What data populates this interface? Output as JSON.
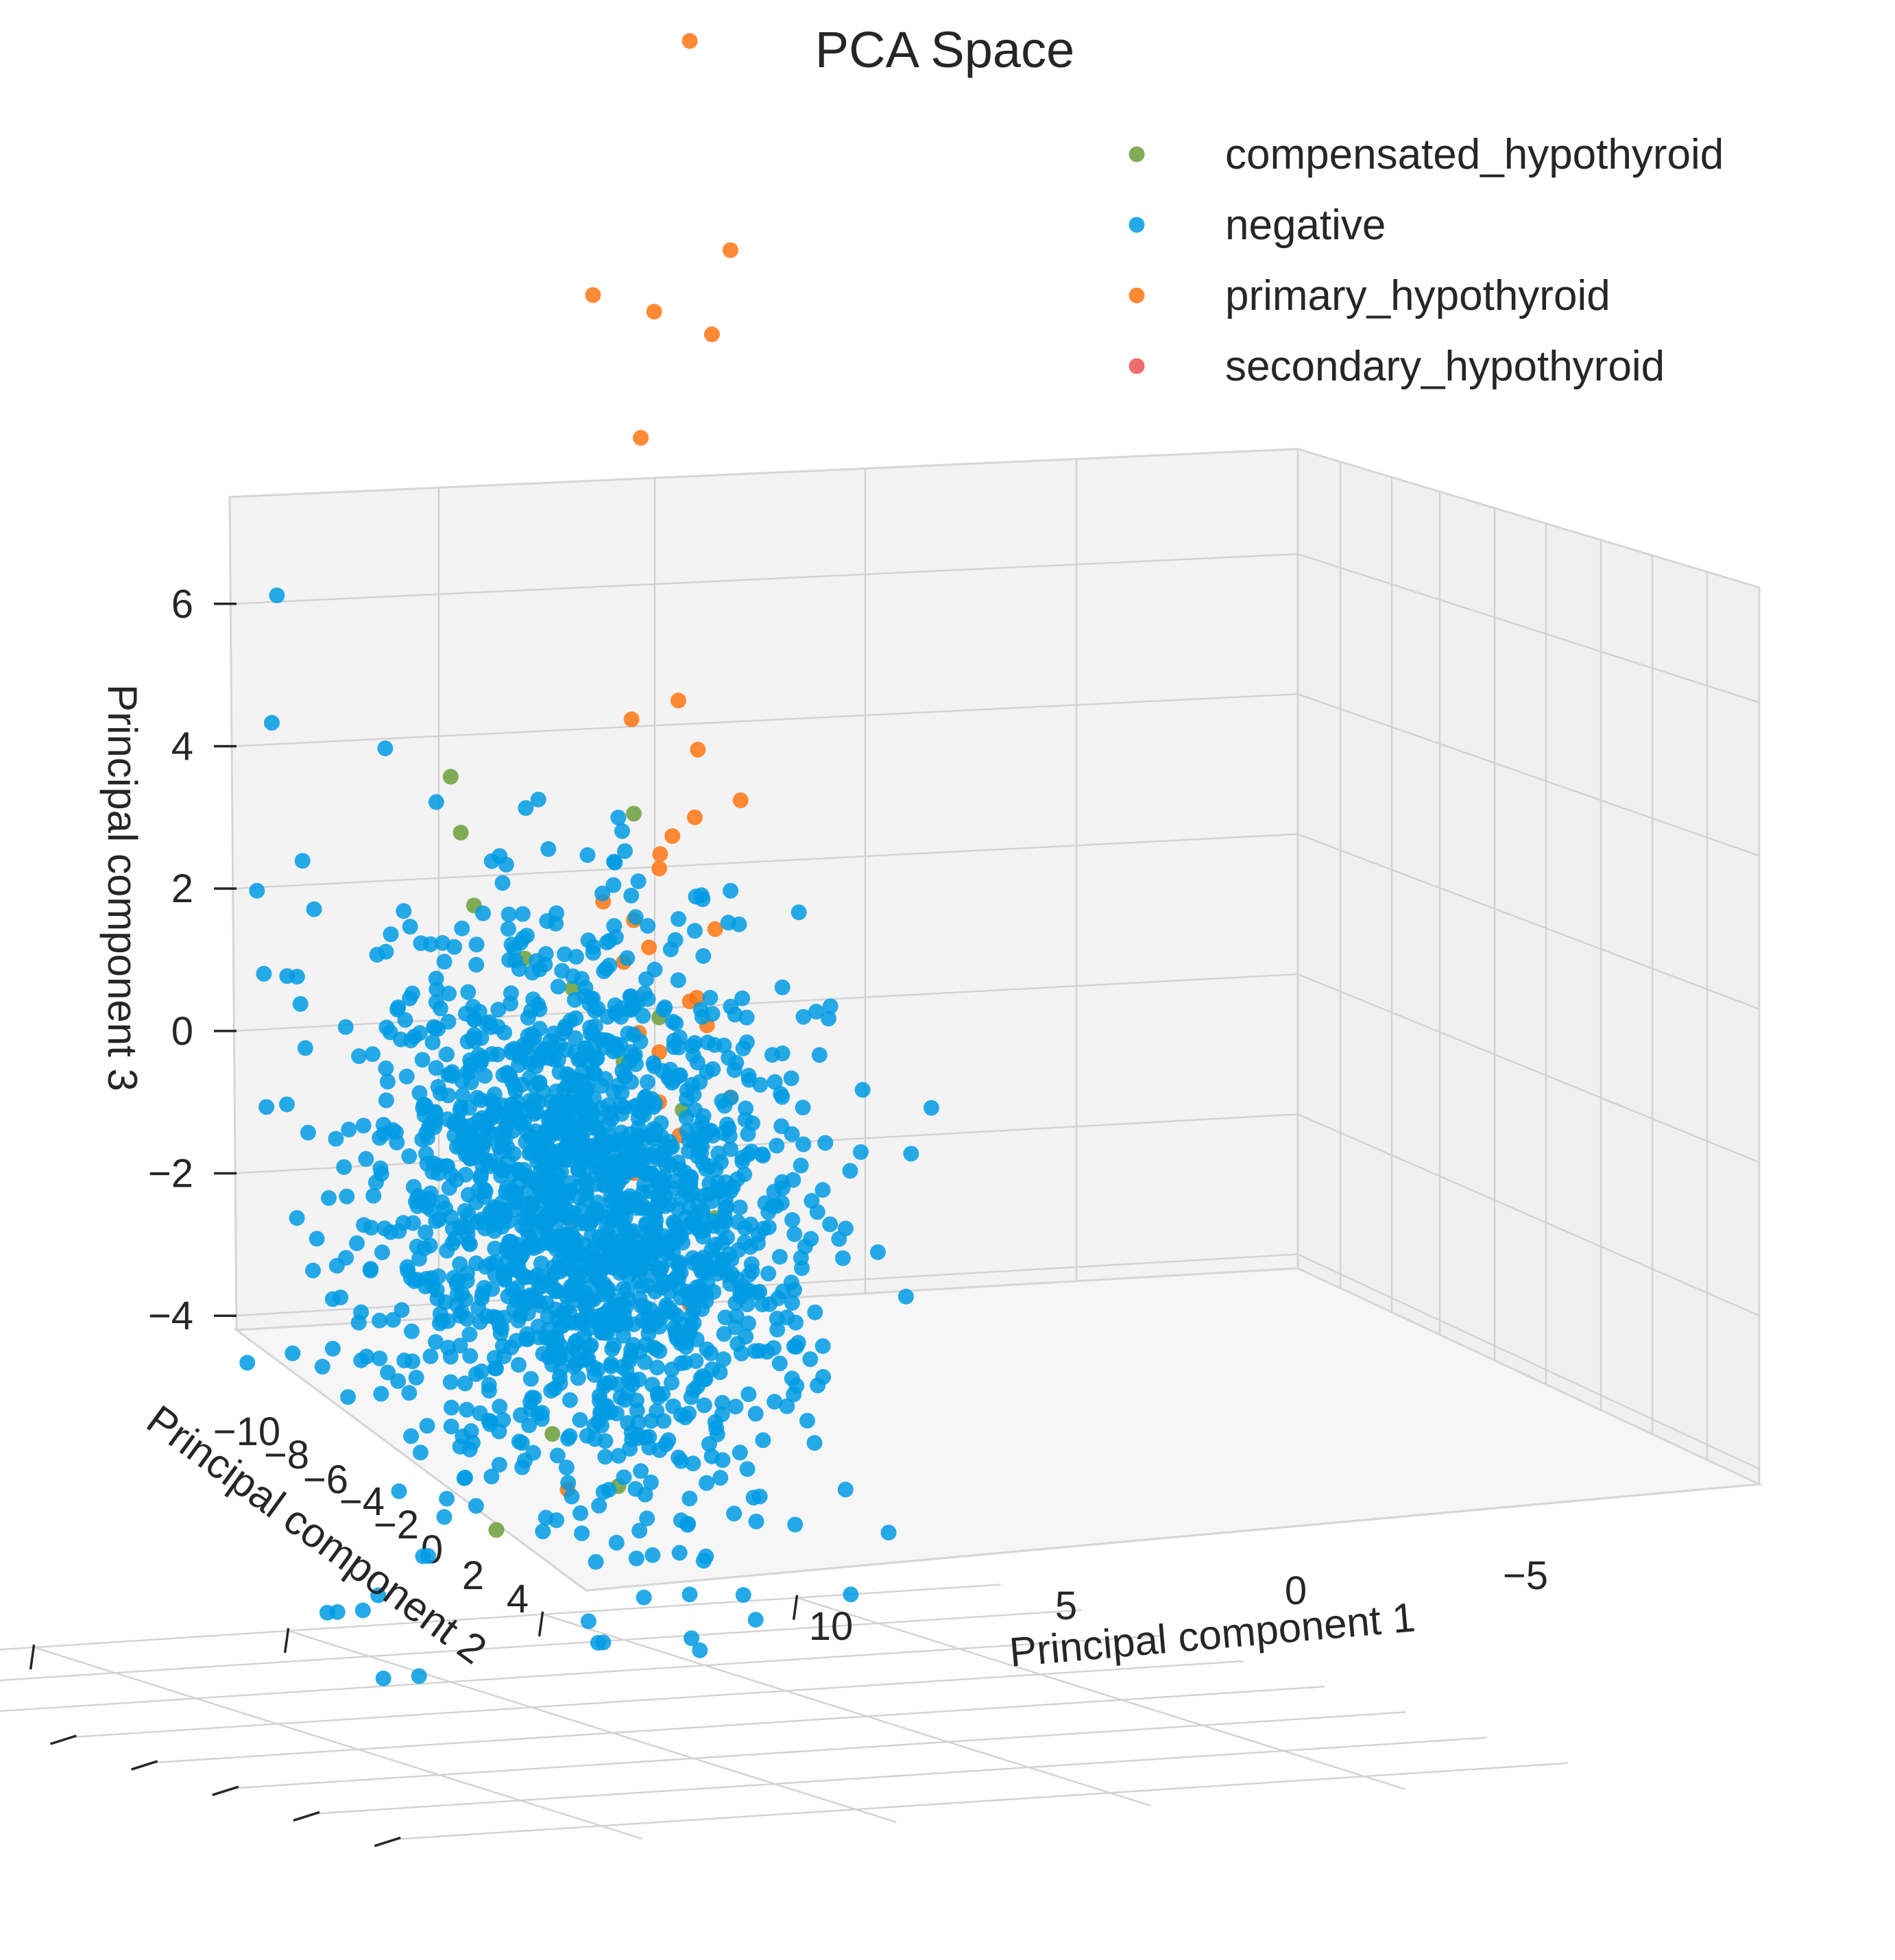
{
  "chart_data": {
    "type": "scatter",
    "projection": "3d",
    "title": "PCA Space",
    "xlabel": "Principal component 1",
    "ylabel": "Principal component 2",
    "zlabel": "Principal component 3",
    "x_ticks": [
      "10",
      "5",
      "0",
      "−5"
    ],
    "y_ticks": [
      "−10",
      "−8",
      "−6",
      "−4",
      "−2",
      "0",
      "2",
      "4"
    ],
    "z_ticks": [
      "6",
      "4",
      "2",
      "0",
      "−2",
      "−4"
    ],
    "xlim": [
      -9,
      14
    ],
    "ylim": [
      -11,
      4
    ],
    "zlim": [
      -4.2,
      7.5
    ],
    "grid": true,
    "legend_position": "top-right",
    "series": [
      {
        "name": "compensated_hypothyroid",
        "color": "#6a9e3a"
      },
      {
        "name": "negative",
        "color": "#009be3"
      },
      {
        "name": "primary_hypothyroid",
        "color": "#ff7410"
      },
      {
        "name": "secondary_hypothyroid",
        "color": "#ec5353"
      }
    ],
    "points": {
      "primary_hypothyroid": [
        [
          -0.5,
          1.0,
          7.2
        ],
        [
          -1.3,
          1.0,
          5.7
        ],
        [
          1.8,
          0.5,
          5.5
        ],
        [
          -0.3,
          0.2,
          5.2
        ],
        [
          0.2,
          1.0,
          5.3
        ],
        [
          1.1,
          0.2,
          4.5
        ],
        [
          1.2,
          0.3,
          2.5
        ],
        [
          0.2,
          0.4,
          2.6
        ],
        [
          -0.5,
          0.8,
          2.2
        ],
        [
          -0.6,
          1.0,
          1.7
        ],
        [
          -1.5,
          1.0,
          1.8
        ],
        [
          0.0,
          0.8,
          1.6
        ],
        [
          0.4,
          0.6,
          1.5
        ],
        [
          -0.3,
          1.5,
          1.3
        ],
        [
          0.6,
          1.0,
          1.0
        ],
        [
          0.0,
          2.0,
          0.6
        ],
        [
          -0.5,
          1.0,
          0.4
        ],
        [
          1.6,
          0.5,
          1.2
        ],
        [
          0.3,
          1.0,
          0.8
        ],
        [
          -1.0,
          1.2,
          0.2
        ],
        [
          -1.3,
          1.0,
          -0.3
        ],
        [
          -0.7,
          1.5,
          -0.6
        ],
        [
          -0.2,
          2.0,
          -0.9
        ],
        [
          0.4,
          1.2,
          -1.0
        ],
        [
          1.0,
          2.0,
          -1.2
        ],
        [
          0.8,
          1.5,
          -1.5
        ],
        [
          -0.9,
          1.5,
          -1.8
        ],
        [
          1.9,
          1.0,
          -3.0
        ],
        [
          -1.0,
          2.0,
          -1.4
        ],
        [
          -0.3,
          1.5,
          0.0
        ],
        [
          0.1,
          1.0,
          -0.3
        ],
        [
          0.5,
          1.0,
          0.2
        ],
        [
          -1.0,
          1.0,
          0.9
        ],
        [
          0.9,
          0.5,
          0.5
        ],
        [
          -0.8,
          1.2,
          0.4
        ]
      ],
      "compensated_hypothyroid": [
        [
          4.2,
          1.0,
          2.1
        ],
        [
          4.0,
          1.0,
          1.7
        ],
        [
          3.9,
          0.8,
          1.2
        ],
        [
          2.9,
          0.8,
          0.8
        ],
        [
          2.2,
          0.5,
          0.6
        ],
        [
          0.2,
          1.5,
          1.7
        ],
        [
          0.1,
          1.0,
          0.3
        ],
        [
          0.8,
          1.0,
          0.0
        ],
        [
          -0.6,
          1.3,
          -0.4
        ],
        [
          -1.4,
          1.5,
          -1.2
        ],
        [
          0.3,
          1.2,
          -1.5
        ],
        [
          -0.5,
          1.2,
          -2.0
        ],
        [
          2.2,
          1.0,
          -2.6
        ],
        [
          3.7,
          0.5,
          -3.2
        ],
        [
          0.9,
          1.0,
          -3.0
        ]
      ],
      "negative": [
        [
          10.8,
          -3.0,
          3.9
        ],
        [
          10.9,
          -3.0,
          3.0
        ],
        [
          9.5,
          -2.0,
          1.9
        ],
        [
          9.6,
          -1.0,
          1.6
        ],
        [
          11.2,
          -4.0,
          1.3
        ],
        [
          10.6,
          -3.0,
          1.2
        ],
        [
          12.6,
          -5.0,
          0.5
        ],
        [
          12.0,
          -5.0,
          -0.3
        ],
        [
          11.4,
          -4.0,
          0.4
        ],
        [
          13.4,
          -9.0,
          -1.0
        ],
        [
          14.3,
          -11.0,
          -2.1
        ],
        [
          14.2,
          -11.0,
          -2.1
        ],
        [
          10.5,
          -4.0,
          -1.0
        ],
        [
          10.2,
          -4.0,
          -1.7
        ],
        [
          8.4,
          -3.0,
          -2.5
        ],
        [
          12.2,
          -6.0,
          -3.0
        ],
        [
          12.0,
          -6.0,
          -3.0
        ],
        [
          11.5,
          -6.0,
          -3.0
        ],
        [
          11.2,
          -6.0,
          -2.9
        ],
        [
          10.3,
          -5.0,
          -3.6
        ],
        [
          9.6,
          -5.0,
          -3.6
        ],
        [
          -0.3,
          1.0,
          -3.5
        ],
        [
          -0.5,
          1.0,
          -3.8
        ],
        [
          -1.0,
          0.0,
          -3.9
        ],
        [
          0.4,
          1.0,
          -3.8
        ],
        [
          1.2,
          1.0,
          -4.1
        ],
        [
          1.3,
          1.0,
          -4.1
        ],
        [
          -0.7,
          1.0,
          -4.2
        ],
        [
          -1.6,
          1.0,
          -2.0
        ],
        [
          -2.2,
          2.0,
          -2.6
        ],
        [
          -1.8,
          2.0,
          -2.7
        ],
        [
          -2.4,
          3.0,
          -2.5
        ]
      ],
      "negative_cloud": {
        "count": 1800,
        "center": [
          2.3,
          0.0,
          -0.9
        ],
        "spread": [
          1.6,
          1.6,
          0.95
        ],
        "seed": 7
      }
    }
  }
}
